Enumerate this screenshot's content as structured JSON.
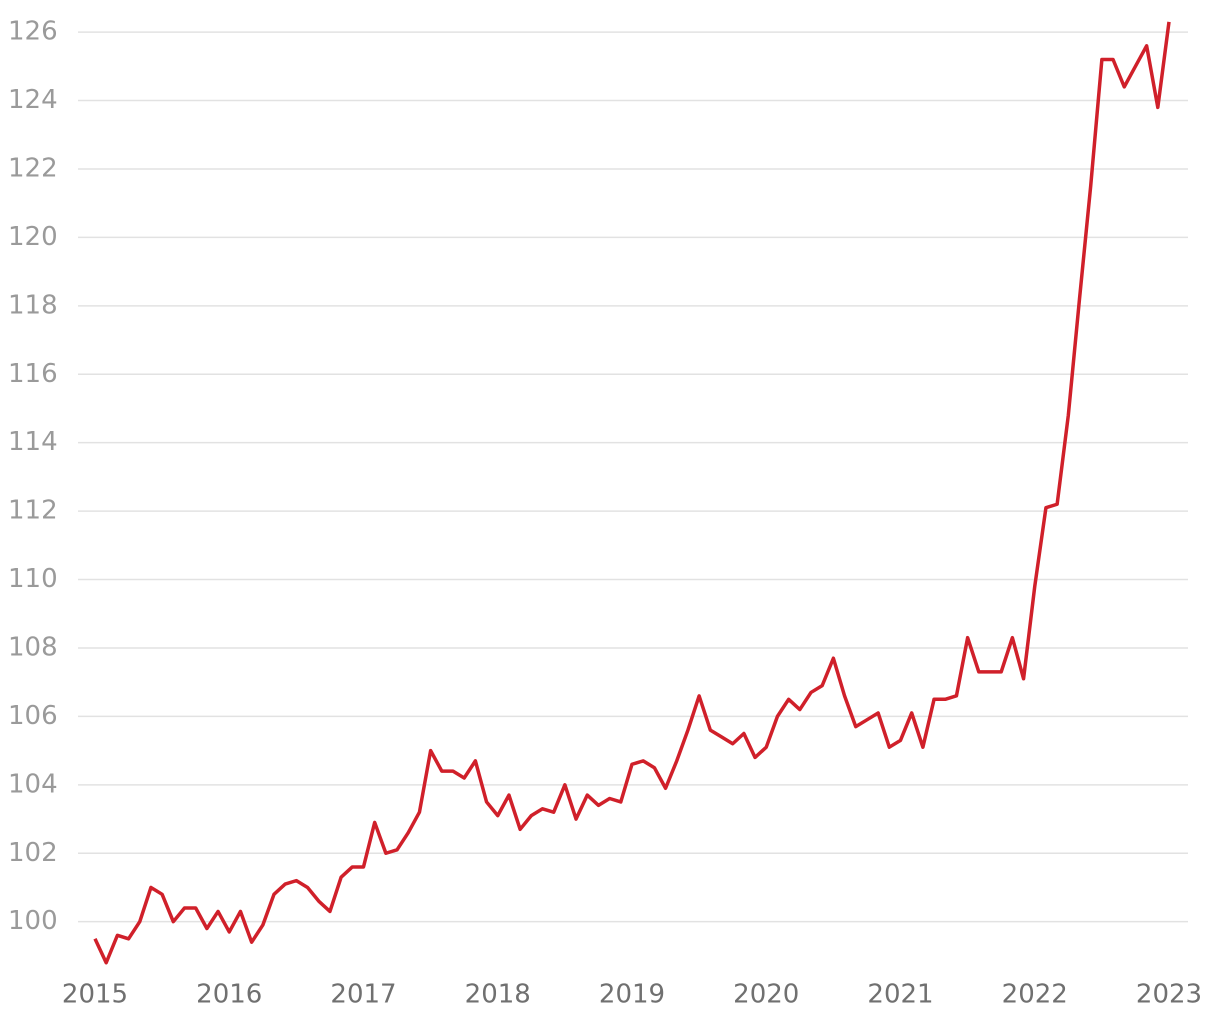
{
  "chart_data": {
    "type": "line",
    "categories": [
      "2015",
      null,
      null,
      null,
      null,
      null,
      null,
      null,
      null,
      null,
      null,
      null,
      "2016",
      null,
      null,
      null,
      null,
      null,
      null,
      null,
      null,
      null,
      null,
      null,
      "2017",
      null,
      null,
      null,
      null,
      null,
      null,
      null,
      null,
      null,
      null,
      null,
      "2018",
      null,
      null,
      null,
      null,
      null,
      null,
      null,
      null,
      null,
      null,
      null,
      "2019",
      null,
      null,
      null,
      null,
      null,
      null,
      null,
      null,
      null,
      null,
      null,
      "2020",
      null,
      null,
      null,
      null,
      null,
      null,
      null,
      null,
      null,
      null,
      null,
      "2021",
      null,
      null,
      null,
      null,
      null,
      null,
      null,
      null,
      null,
      null,
      null,
      "2022",
      null,
      null,
      null,
      null,
      null,
      null,
      null,
      null,
      null,
      null,
      null,
      "2023"
    ],
    "values": [
      99.5,
      98.8,
      99.6,
      99.5,
      100.0,
      101.0,
      100.8,
      100.0,
      100.4,
      100.4,
      99.8,
      100.3,
      99.7,
      100.3,
      99.4,
      99.9,
      100.8,
      101.1,
      101.2,
      101.0,
      100.6,
      100.3,
      101.3,
      101.6,
      101.6,
      102.9,
      102.0,
      102.1,
      102.6,
      103.2,
      105.0,
      104.4,
      104.4,
      104.2,
      104.7,
      103.5,
      103.1,
      103.7,
      102.7,
      103.1,
      103.3,
      103.2,
      104.0,
      103.0,
      103.7,
      103.4,
      103.6,
      103.5,
      104.6,
      104.7,
      104.5,
      103.9,
      104.7,
      105.6,
      106.6,
      105.6,
      105.4,
      105.2,
      105.5,
      104.8,
      105.1,
      106.0,
      106.5,
      106.2,
      106.7,
      106.9,
      107.7,
      106.6,
      105.7,
      105.9,
      106.1,
      105.1,
      105.3,
      106.1,
      105.1,
      106.5,
      106.5,
      106.6,
      108.3,
      107.3,
      107.3,
      107.3,
      108.3,
      107.1,
      109.8,
      112.1,
      112.2,
      114.8,
      118.2,
      121.5,
      125.2,
      125.2,
      124.4,
      125.0,
      125.6,
      123.8,
      126.3
    ],
    "color": "#d0202a",
    "ylim": [
      98.5,
      126.5
    ],
    "yticks": [
      100,
      102,
      104,
      106,
      108,
      110,
      112,
      114,
      116,
      118,
      120,
      122,
      124,
      126
    ],
    "grid": true
  }
}
